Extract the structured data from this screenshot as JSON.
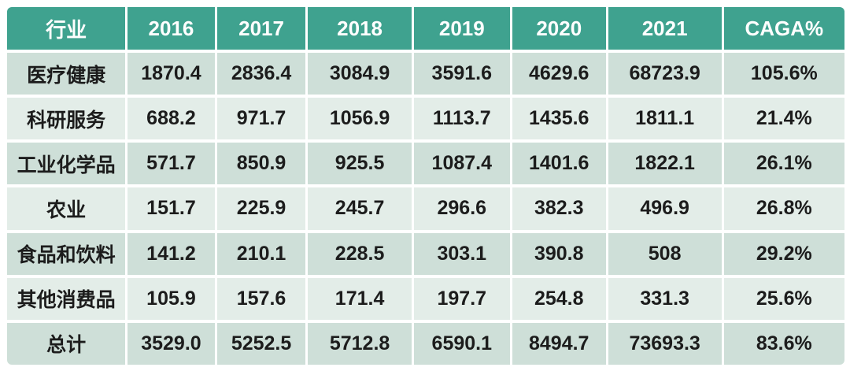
{
  "colors": {
    "header_bg": "#3FA28F",
    "header_text": "#FFFFFF",
    "row_dark": "#CEDFD8",
    "row_light": "#E3EDE8",
    "body_text": "#1C1C1C",
    "gap": "#FFFFFF"
  },
  "table": {
    "header": [
      "行业",
      "2016",
      "2017",
      "2018",
      "2019",
      "2020",
      "2021",
      "CAGA%"
    ],
    "rows": [
      [
        "医疗健康",
        "1870.4",
        "2836.4",
        "3084.9",
        "3591.6",
        "4629.6",
        "68723.9",
        "105.6%"
      ],
      [
        "科研服务",
        "688.2",
        "971.7",
        "1056.9",
        "1113.7",
        "1435.6",
        "1811.1",
        "21.4%"
      ],
      [
        "工业化学品",
        "571.7",
        "850.9",
        "925.5",
        "1087.4",
        "1401.6",
        "1822.1",
        "26.1%"
      ],
      [
        "农业",
        "151.7",
        "225.9",
        "245.7",
        "296.6",
        "382.3",
        "496.9",
        "26.8%"
      ],
      [
        "食品和饮料",
        "141.2",
        "210.1",
        "228.5",
        "303.1",
        "390.8",
        "508",
        "29.2%"
      ],
      [
        "其他消费品",
        "105.9",
        "157.6",
        "171.4",
        "197.7",
        "254.8",
        "331.3",
        "25.6%"
      ],
      [
        "总计",
        "3529.0",
        "5252.5",
        "5712.8",
        "6590.1",
        "8494.7",
        "73693.3",
        "83.6%"
      ]
    ]
  },
  "chart_data": {
    "type": "table",
    "title": "",
    "columns": [
      "行业",
      "2016",
      "2017",
      "2018",
      "2019",
      "2020",
      "2021",
      "CAGA%"
    ],
    "categories": [
      "医疗健康",
      "科研服务",
      "工业化学品",
      "农业",
      "食品和饮料",
      "其他消费品",
      "总计"
    ],
    "series": [
      {
        "name": "2016",
        "values": [
          1870.4,
          688.2,
          571.7,
          151.7,
          141.2,
          105.9,
          3529.0
        ]
      },
      {
        "name": "2017",
        "values": [
          2836.4,
          971.7,
          850.9,
          225.9,
          210.1,
          157.6,
          5252.5
        ]
      },
      {
        "name": "2018",
        "values": [
          3084.9,
          1056.9,
          925.5,
          245.7,
          228.5,
          171.4,
          5712.8
        ]
      },
      {
        "name": "2019",
        "values": [
          3591.6,
          1113.7,
          1087.4,
          296.6,
          303.1,
          197.7,
          6590.1
        ]
      },
      {
        "name": "2020",
        "values": [
          4629.6,
          1435.6,
          1401.6,
          382.3,
          390.8,
          254.8,
          8494.7
        ]
      },
      {
        "name": "2021",
        "values": [
          68723.9,
          1811.1,
          1822.1,
          496.9,
          508,
          331.3,
          73693.3
        ]
      },
      {
        "name": "CAGA%",
        "values": [
          "105.6%",
          "21.4%",
          "26.1%",
          "26.8%",
          "29.2%",
          "25.6%",
          "83.6%"
        ]
      }
    ]
  }
}
